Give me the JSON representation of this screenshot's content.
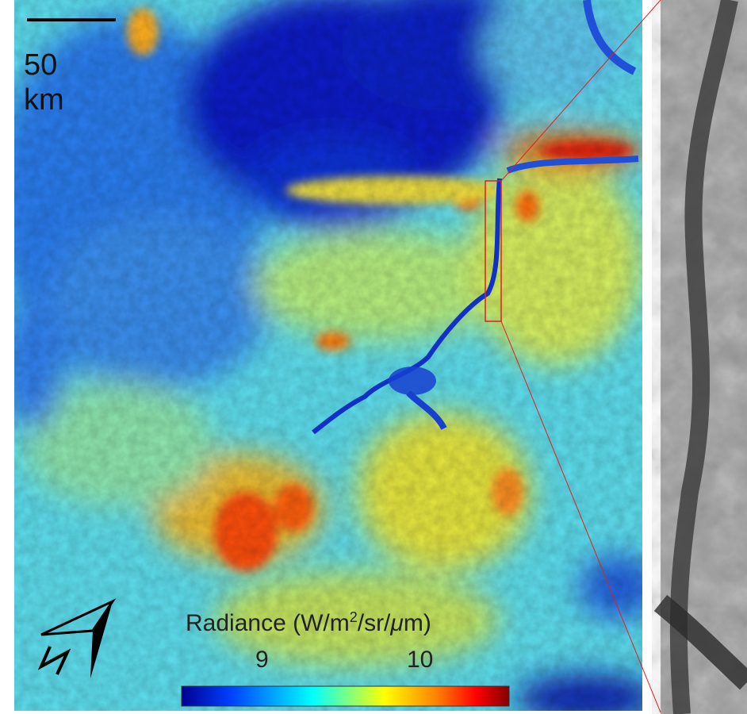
{
  "scale_bar": {
    "value": "50",
    "unit": "km"
  },
  "north_arrow": {
    "icon": "north-arrow-icon",
    "label": "N"
  },
  "colorbar": {
    "title_prefix": "Radiance (W/m",
    "title_sup": "2",
    "title_suffix": "/sr/",
    "title_mu": "μ",
    "title_end": "m)",
    "ticks": [
      {
        "label": "9",
        "value": 9
      },
      {
        "label": "10",
        "value": 10
      }
    ],
    "colormap": "jet",
    "colors": [
      "#00008f",
      "#0040ff",
      "#00ffff",
      "#ffff00",
      "#ff8000",
      "#ff0000",
      "#800000"
    ]
  },
  "inset": {
    "type": "grayscale zoom of river segment",
    "box_color": "#e02020"
  }
}
